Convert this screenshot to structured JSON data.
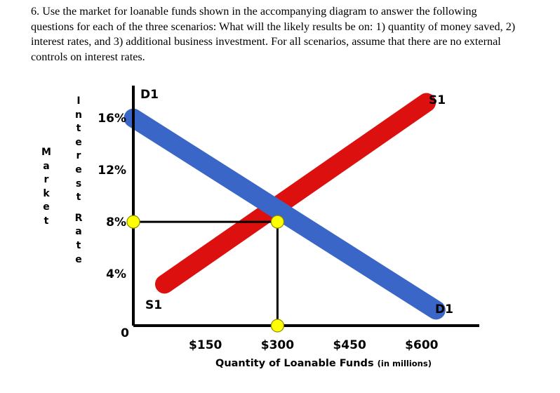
{
  "question": {
    "text": "6. Use the market for loanable funds shown in the accompanying diagram to answer the following questions for each of the three scenarios: What will the likely results be on: 1) quantity of money saved, 2) interest rates, and 3) additional business investment. For all scenarios, assume that there are no external controls on interest rates."
  },
  "chart_data": {
    "type": "line",
    "ylabel_outer": "Market",
    "ylabel_inner": "Interest Rate",
    "xlabel": "Quantity of Loanable Funds",
    "xlabel_unit": "(in millions)",
    "origin_label": "0",
    "y_ticks": [
      {
        "value": 16,
        "label": "16%"
      },
      {
        "value": 12,
        "label": "12%"
      },
      {
        "value": 8,
        "label": "8%"
      },
      {
        "value": 4,
        "label": "4%"
      }
    ],
    "x_ticks": [
      {
        "value": 150,
        "label": "$150"
      },
      {
        "value": 300,
        "label": "$300"
      },
      {
        "value": 450,
        "label": "$450"
      },
      {
        "value": 600,
        "label": "$600"
      }
    ],
    "xlim": [
      0,
      720
    ],
    "ylim": [
      0,
      18.5
    ],
    "series": [
      {
        "name": "D1",
        "color": "#3a66c8",
        "x": [
          0,
          630
        ],
        "y": [
          16,
          1.2
        ],
        "start_label": "D1",
        "end_label": "D1"
      },
      {
        "name": "S1",
        "color": "#dd1010",
        "x": [
          65,
          610
        ],
        "y": [
          3.2,
          17.2
        ],
        "start_label": "S1",
        "end_label": "S1"
      }
    ],
    "equilibrium": {
      "x": 300,
      "y": 8
    },
    "marker_color": "#ffff00"
  }
}
